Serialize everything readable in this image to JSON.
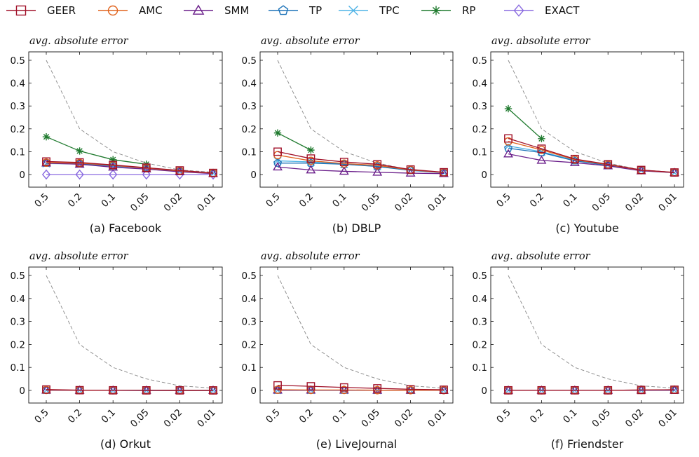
{
  "legend": [
    {
      "name": "GEER",
      "color": "#a01028",
      "marker": "square"
    },
    {
      "name": "AMC",
      "color": "#e0621c",
      "marker": "circle"
    },
    {
      "name": "SMM",
      "color": "#6a1e8a",
      "marker": "triangle"
    },
    {
      "name": "TP",
      "color": "#1b72b8",
      "marker": "pentagon"
    },
    {
      "name": "TPC",
      "color": "#4fb3e6",
      "marker": "x"
    },
    {
      "name": "RP",
      "color": "#1f7a2e",
      "marker": "asterisk"
    },
    {
      "name": "EXACT",
      "color": "#8a6be0",
      "marker": "diamond"
    }
  ],
  "reference_line": {
    "color": "#888888",
    "style": "dashed"
  },
  "chart_data": [
    {
      "type": "line",
      "caption": "(a) Facebook",
      "ylabel": "avg. absolute error",
      "categories": [
        "0.5",
        "0.2",
        "0.1",
        "0.05",
        "0.02",
        "0.01"
      ],
      "yticks": [
        "0",
        "0.1",
        "0.2",
        "0.3",
        "0.4",
        "0.5"
      ],
      "ylim": [
        0,
        0.5
      ],
      "reference": [
        0.5,
        0.2,
        0.1,
        0.05,
        0.02,
        0.01
      ],
      "series": [
        {
          "name": "GEER",
          "values": [
            0.057,
            0.053,
            0.042,
            0.03,
            0.018,
            0.007
          ]
        },
        {
          "name": "AMC",
          "values": [
            0.052,
            0.05,
            0.04,
            0.028,
            0.016,
            0.006
          ]
        },
        {
          "name": "SMM",
          "values": [
            0.05,
            0.045,
            0.032,
            0.024,
            0.012,
            0.004
          ]
        },
        {
          "name": "TP",
          "values": [
            0.05,
            0.048,
            0.038,
            0.03,
            0.015,
            0.006
          ]
        },
        {
          "name": "TPC",
          "values": [
            0.048,
            0.046,
            0.036,
            0.028,
            0.014,
            0.006
          ]
        },
        {
          "name": "RP",
          "values": [
            0.165,
            0.103,
            0.065,
            0.045,
            null,
            null
          ]
        },
        {
          "name": "EXACT",
          "values": [
            0.0,
            0.0,
            0.0,
            0.0,
            0.0,
            0.0
          ]
        }
      ]
    },
    {
      "type": "line",
      "caption": "(b) DBLP",
      "ylabel": "avg. absolute error",
      "categories": [
        "0.5",
        "0.2",
        "0.1",
        "0.05",
        "0.02",
        "0.01"
      ],
      "yticks": [
        "0",
        "0.1",
        "0.2",
        "0.3",
        "0.4",
        "0.5"
      ],
      "ylim": [
        0,
        0.5
      ],
      "reference": [
        0.5,
        0.2,
        0.1,
        0.05,
        0.02,
        0.01
      ],
      "series": [
        {
          "name": "GEER",
          "values": [
            0.1,
            0.07,
            0.055,
            0.045,
            0.022,
            0.01
          ]
        },
        {
          "name": "AMC",
          "values": [
            0.085,
            0.06,
            0.048,
            0.04,
            0.02,
            0.009
          ]
        },
        {
          "name": "SMM",
          "values": [
            0.033,
            0.02,
            0.014,
            0.01,
            0.006,
            0.004
          ]
        },
        {
          "name": "TP",
          "values": [
            0.05,
            0.05,
            0.045,
            0.035,
            0.018,
            0.008
          ]
        },
        {
          "name": "TPC",
          "values": [
            0.06,
            0.055,
            0.045,
            0.036,
            0.018,
            0.008
          ]
        },
        {
          "name": "RP",
          "values": [
            0.182,
            0.107,
            null,
            null,
            null,
            null
          ]
        },
        {
          "name": "EXACT",
          "values": [
            null,
            null,
            null,
            null,
            null,
            null
          ]
        }
      ]
    },
    {
      "type": "line",
      "caption": "(c) Youtube",
      "ylabel": "avg. absolute error",
      "categories": [
        "0.5",
        "0.2",
        "0.1",
        "0.05",
        "0.02",
        "0.01"
      ],
      "yticks": [
        "0",
        "0.1",
        "0.2",
        "0.3",
        "0.4",
        "0.5"
      ],
      "ylim": [
        0,
        0.5
      ],
      "reference": [
        0.5,
        0.2,
        0.1,
        0.05,
        0.02,
        0.01
      ],
      "series": [
        {
          "name": "GEER",
          "values": [
            0.158,
            0.113,
            0.068,
            0.045,
            0.02,
            0.009
          ]
        },
        {
          "name": "AMC",
          "values": [
            0.145,
            0.108,
            0.065,
            0.043,
            0.019,
            0.009
          ]
        },
        {
          "name": "SMM",
          "values": [
            0.09,
            0.062,
            0.052,
            0.038,
            0.016,
            0.008
          ]
        },
        {
          "name": "TP",
          "values": [
            0.115,
            0.096,
            0.06,
            0.04,
            0.018,
            0.008
          ]
        },
        {
          "name": "TPC",
          "values": [
            0.125,
            0.1,
            0.062,
            0.042,
            0.018,
            0.008
          ]
        },
        {
          "name": "RP",
          "values": [
            0.288,
            0.157,
            null,
            null,
            null,
            null
          ]
        },
        {
          "name": "EXACT",
          "values": [
            null,
            null,
            null,
            null,
            null,
            null
          ]
        }
      ]
    },
    {
      "type": "line",
      "caption": "(d) Orkut",
      "ylabel": "avg. absolute error",
      "categories": [
        "0.5",
        "0.2",
        "0.1",
        "0.05",
        "0.02",
        "0.01"
      ],
      "yticks": [
        "0",
        "0.1",
        "0.2",
        "0.3",
        "0.4",
        "0.5"
      ],
      "ylim": [
        0,
        0.5
      ],
      "reference": [
        0.5,
        0.2,
        0.1,
        0.05,
        0.02,
        0.01
      ],
      "series": [
        {
          "name": "GEER",
          "values": [
            0.004,
            0.001,
            0.0005,
            0.0003,
            0.0002,
            0.0001
          ]
        },
        {
          "name": "AMC",
          "values": [
            0.002,
            0.001,
            0.0005,
            0.0003,
            0.0002,
            0.0001
          ]
        },
        {
          "name": "SMM",
          "values": [
            0.001,
            0.0005,
            0.0003,
            0.0002,
            0.0001,
            0.0001
          ]
        },
        {
          "name": "TP",
          "values": [
            0.001,
            0.0005,
            0.0003,
            0.0002,
            0.0001,
            0.0001
          ]
        },
        {
          "name": "TPC",
          "values": [
            0.001,
            0.0005,
            0.0003,
            0.0002,
            0.0001,
            0.0001
          ]
        },
        {
          "name": "RP",
          "values": [
            null,
            null,
            null,
            null,
            null,
            null
          ]
        },
        {
          "name": "EXACT",
          "values": [
            null,
            null,
            null,
            null,
            null,
            null
          ]
        }
      ]
    },
    {
      "type": "line",
      "caption": "(e) LiveJournal",
      "ylabel": "avg. absolute error",
      "categories": [
        "0.5",
        "0.2",
        "0.1",
        "0.05",
        "0.02",
        "0.01"
      ],
      "yticks": [
        "0",
        "0.1",
        "0.2",
        "0.3",
        "0.4",
        "0.5"
      ],
      "ylim": [
        0,
        0.5
      ],
      "reference": [
        0.5,
        0.2,
        0.1,
        0.05,
        0.02,
        0.01
      ],
      "series": [
        {
          "name": "GEER",
          "values": [
            0.022,
            0.018,
            0.013,
            0.009,
            0.005,
            0.003
          ]
        },
        {
          "name": "AMC",
          "values": [
            0.003,
            0.002,
            0.002,
            0.001,
            0.001,
            0.001
          ]
        },
        {
          "name": "SMM",
          "values": [
            0.001,
            0.001,
            0.001,
            0.0005,
            0.0005,
            0.0005
          ]
        },
        {
          "name": "TP",
          "values": [
            0.001,
            0.001,
            0.001,
            0.0005,
            0.0005,
            0.0005
          ]
        },
        {
          "name": "TPC",
          "values": [
            0.001,
            0.001,
            0.001,
            0.0005,
            0.0005,
            0.0005
          ]
        },
        {
          "name": "RP",
          "values": [
            null,
            null,
            null,
            null,
            null,
            null
          ]
        },
        {
          "name": "EXACT",
          "values": [
            null,
            null,
            null,
            null,
            null,
            null
          ]
        }
      ]
    },
    {
      "type": "line",
      "caption": "(f) Friendster",
      "ylabel": "avg. absolute error",
      "categories": [
        "0.5",
        "0.2",
        "0.1",
        "0.05",
        "0.02",
        "0.01"
      ],
      "yticks": [
        "0",
        "0.1",
        "0.2",
        "0.3",
        "0.4",
        "0.5"
      ],
      "ylim": [
        0,
        0.5
      ],
      "reference": [
        0.5,
        0.2,
        0.1,
        0.05,
        0.02,
        0.01
      ],
      "series": [
        {
          "name": "GEER",
          "values": [
            0.0005,
            0.0005,
            0.0005,
            0.0005,
            0.002,
            0.003
          ]
        },
        {
          "name": "AMC",
          "values": [
            0.0005,
            0.0005,
            0.0005,
            0.0005,
            0.002,
            0.003
          ]
        },
        {
          "name": "SMM",
          "values": [
            0.0003,
            0.0003,
            0.0003,
            0.0003,
            0.001,
            0.001
          ]
        },
        {
          "name": "TP",
          "values": [
            0.0003,
            0.0003,
            0.0003,
            0.0003,
            0.001,
            0.001
          ]
        },
        {
          "name": "TPC",
          "values": [
            0.0003,
            0.0003,
            0.0003,
            0.0003,
            0.001,
            0.001
          ]
        },
        {
          "name": "RP",
          "values": [
            null,
            null,
            null,
            null,
            null,
            null
          ]
        },
        {
          "name": "EXACT",
          "values": [
            null,
            null,
            null,
            null,
            null,
            null
          ]
        }
      ]
    }
  ]
}
